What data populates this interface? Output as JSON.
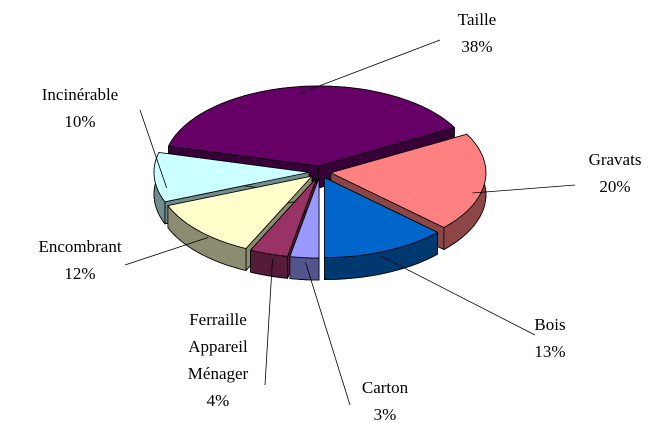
{
  "chart_data": {
    "type": "pie",
    "categories": [
      "Taille",
      "Gravats",
      "Bois",
      "Carton",
      "Ferraille Appareil Ménager",
      "Encombrant",
      "Incinérable"
    ],
    "values": [
      38,
      20,
      13,
      3,
      4,
      12,
      10
    ],
    "value_labels": [
      "38%",
      "20%",
      "13%",
      "3%",
      "4%",
      "12%",
      "10%"
    ],
    "colors": [
      "#660066",
      "#ff8080",
      "#0066cc",
      "#9999ff",
      "#993366",
      "#ffffcc",
      "#ccffff"
    ]
  }
}
